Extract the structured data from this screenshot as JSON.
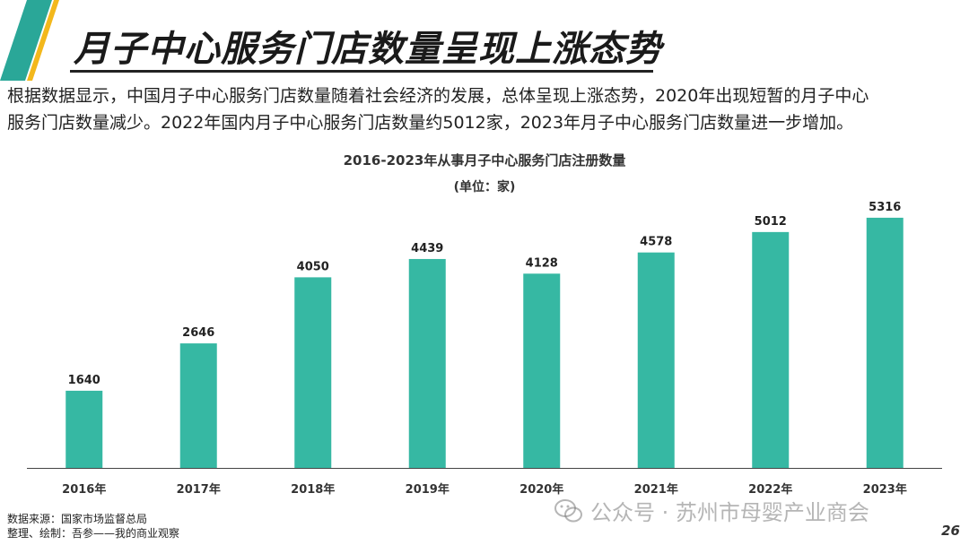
{
  "header": {
    "title": "月子中心服务门店数量呈现上涨态势"
  },
  "intro": {
    "line1": "根据数据显示，中国月子中心服务门店数量随着社会经济的发展，总体呈现上涨态势，2020年出现短暂的月子中心",
    "line2": "服务门店数量减少。2022年国内月子中心服务门店数量约5012家，2023年月子中心服务门店数量进一步增加。"
  },
  "colors": {
    "bar": "#36b8a3",
    "deco_teal": "#2aa798",
    "deco_yellow": "#f3b81c",
    "axis": "#444444"
  },
  "chart_data": {
    "type": "bar",
    "title": "2016-2023年从事月子中心服务门店注册数量",
    "subtitle": "(单位：家)",
    "categories": [
      "2016年",
      "2017年",
      "2018年",
      "2019年",
      "2020年",
      "2021年",
      "2022年",
      "2023年"
    ],
    "values": [
      1640,
      2646,
      4050,
      4439,
      4128,
      4578,
      5012,
      5316
    ],
    "xlabel": "",
    "ylabel": "",
    "ylim": [
      0,
      6000
    ],
    "grid": false,
    "legend": "none"
  },
  "footer": {
    "source": "数据来源：国家市场监督总局",
    "compiled": "整理、绘制：吾参——我的商业观察",
    "watermark": "公众号 · 苏州市母婴产业商会",
    "page_number": "26"
  }
}
